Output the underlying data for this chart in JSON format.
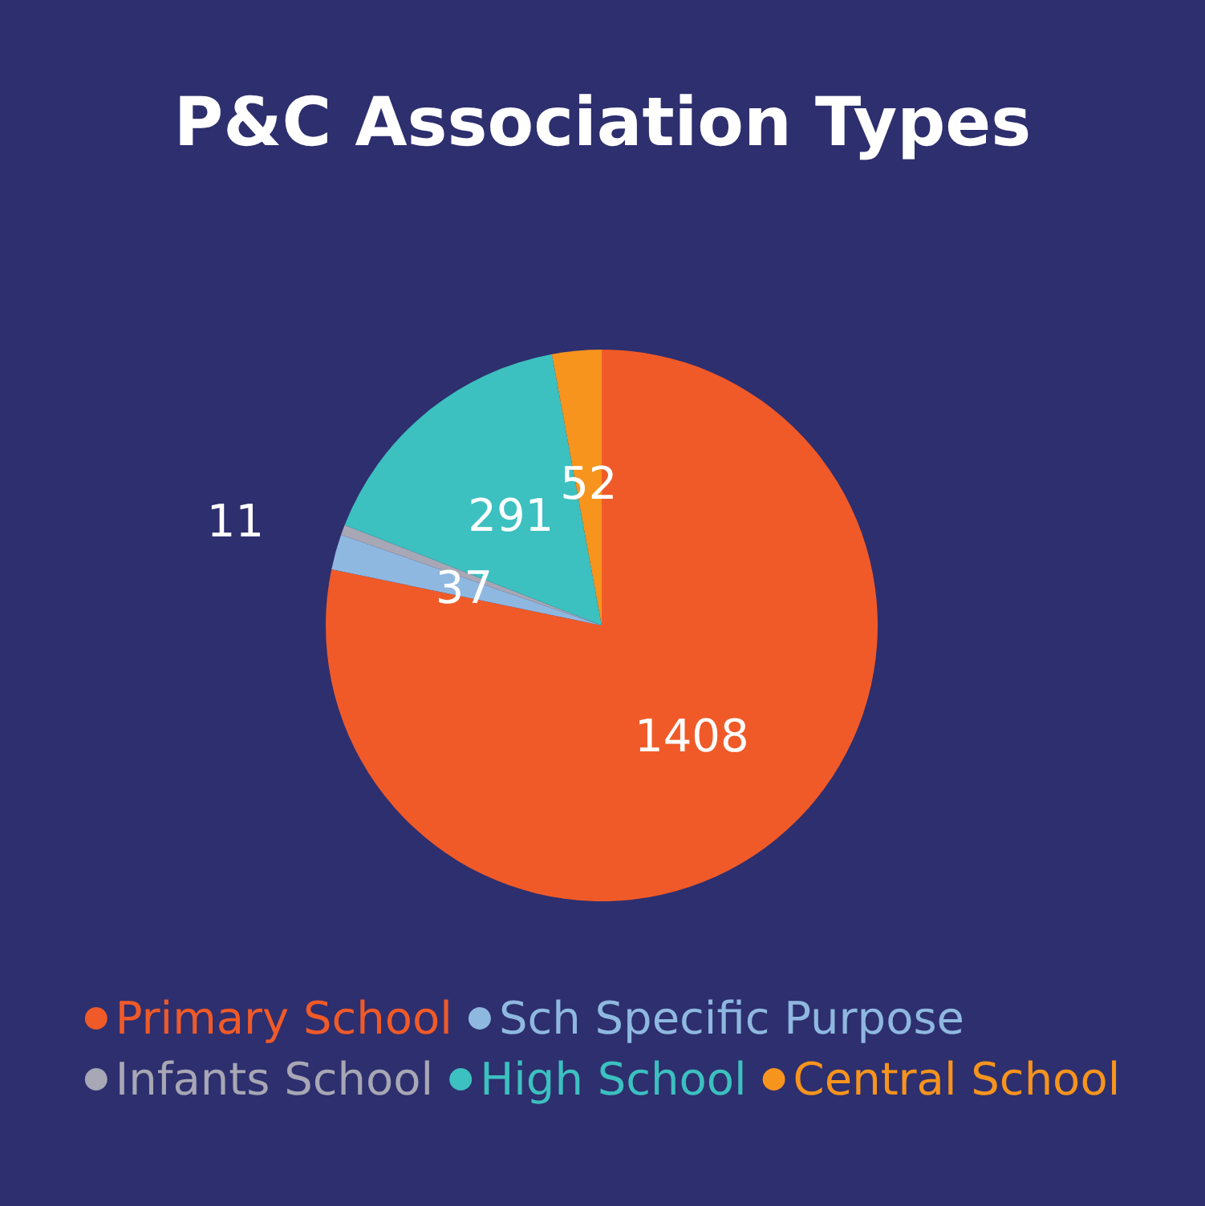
{
  "chart_data": {
    "type": "pie",
    "title": "P&C Association Types",
    "categories": [
      "Primary School",
      "Sch Specific Purpose",
      "Infants School",
      "High School",
      "Central School"
    ],
    "values": [
      1408,
      37,
      11,
      291,
      52
    ],
    "colors": [
      "#f05a28",
      "#8fb8e0",
      "#a7a7b5",
      "#3cc0c0",
      "#f7941d"
    ],
    "data_labels": true,
    "legend": "bottom"
  }
}
